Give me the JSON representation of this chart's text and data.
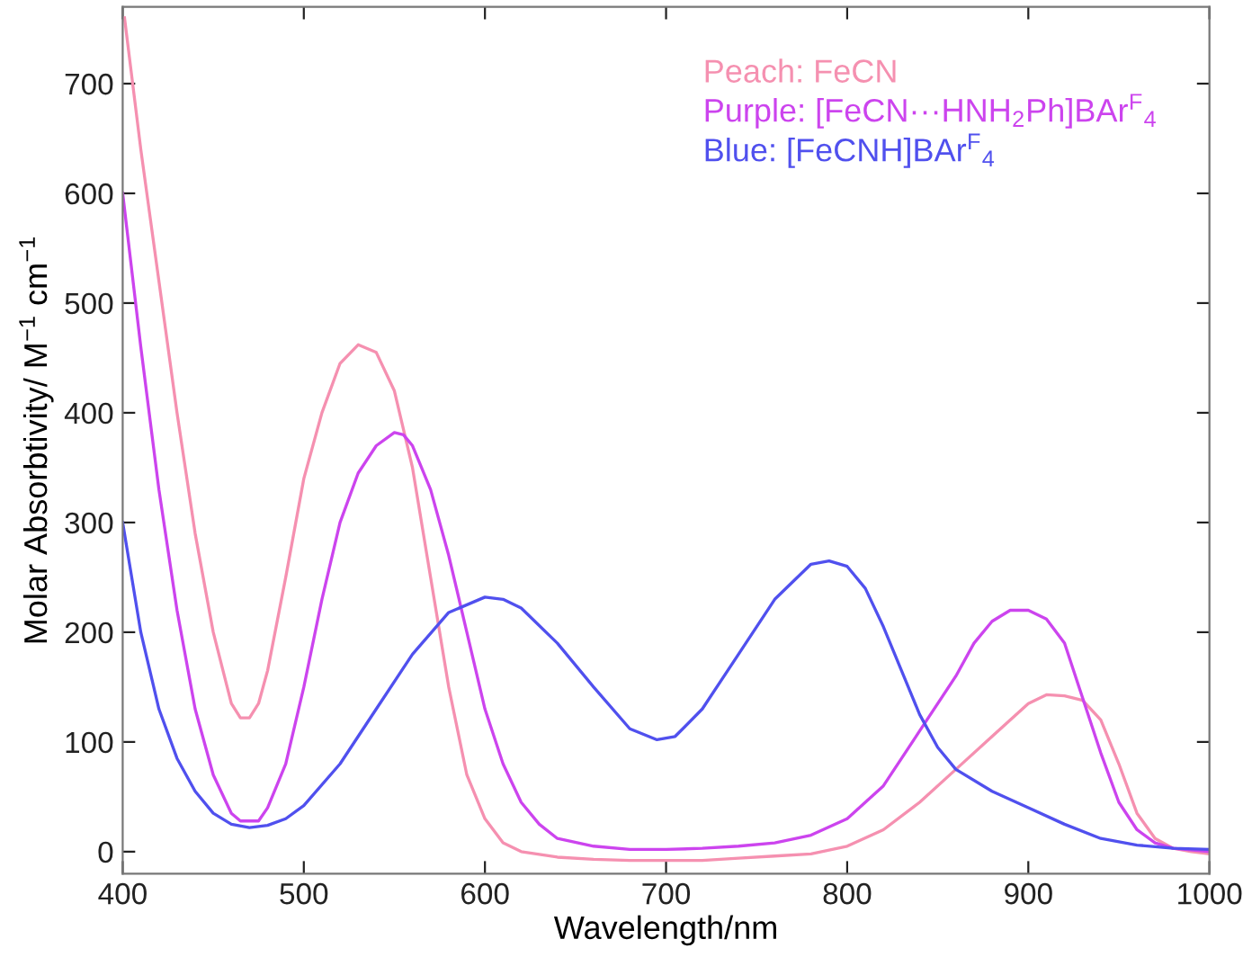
{
  "chart_data": {
    "type": "line",
    "xlabel": "Wavelength/nm",
    "ylabel": "Molar Absorbtivity/ M$^{−1}$ cm$^{−1}$",
    "xlim": [
      400,
      1000
    ],
    "xticks": [
      400,
      500,
      600,
      700,
      800,
      900,
      1000
    ],
    "ylim": [
      -20,
      770
    ],
    "yticks": [
      0,
      100,
      200,
      300,
      400,
      500,
      600,
      700
    ],
    "grid": false,
    "legend": "top right",
    "marker": "none",
    "line_style": "solid",
    "series": [
      {
        "name": "Peach: FeCN",
        "color": "#f590b0",
        "x": [
          401,
          410,
          420,
          430,
          440,
          450,
          460,
          465,
          470,
          475,
          480,
          490,
          500,
          510,
          520,
          530,
          540,
          550,
          560,
          570,
          580,
          590,
          600,
          610,
          620,
          640,
          660,
          680,
          700,
          720,
          740,
          760,
          780,
          800,
          820,
          840,
          860,
          880,
          900,
          910,
          920,
          930,
          940,
          950,
          960,
          970,
          980,
          990,
          1000
        ],
        "values": [
          760,
          640,
          520,
          400,
          290,
          200,
          135,
          122,
          122,
          135,
          165,
          250,
          340,
          400,
          445,
          462,
          455,
          420,
          350,
          250,
          150,
          70,
          30,
          8,
          0,
          -5,
          -7,
          -8,
          -8,
          -8,
          -6,
          -4,
          -2,
          5,
          20,
          45,
          75,
          105,
          135,
          143,
          142,
          138,
          120,
          80,
          35,
          12,
          3,
          0,
          -2
        ]
      },
      {
        "name": "Purple: [FeCN···HNH$_{2}$Ph]BAr$^{F}$$_{4}$",
        "color": "#cc44ee",
        "x": [
          400,
          410,
          420,
          430,
          440,
          450,
          460,
          465,
          475,
          480,
          490,
          500,
          510,
          520,
          530,
          540,
          550,
          555,
          560,
          570,
          580,
          590,
          600,
          610,
          620,
          630,
          640,
          660,
          680,
          700,
          720,
          740,
          760,
          780,
          800,
          820,
          840,
          860,
          870,
          880,
          890,
          900,
          910,
          920,
          930,
          940,
          950,
          960,
          970,
          980,
          1000
        ],
        "values": [
          600,
          460,
          330,
          220,
          130,
          70,
          35,
          28,
          28,
          40,
          80,
          150,
          230,
          300,
          345,
          370,
          382,
          380,
          370,
          330,
          270,
          200,
          130,
          80,
          45,
          25,
          12,
          5,
          2,
          2,
          3,
          5,
          8,
          15,
          30,
          60,
          110,
          160,
          190,
          210,
          220,
          220,
          212,
          190,
          140,
          90,
          45,
          20,
          8,
          3,
          0
        ]
      },
      {
        "name": "Blue: [FeCNH]BAr$^{F}$$_{4}$",
        "color": "#5050ee",
        "x": [
          400,
          410,
          420,
          430,
          440,
          450,
          460,
          470,
          480,
          490,
          500,
          520,
          540,
          560,
          580,
          600,
          610,
          620,
          640,
          660,
          680,
          695,
          705,
          720,
          740,
          760,
          780,
          790,
          800,
          810,
          820,
          830,
          840,
          850,
          860,
          880,
          900,
          920,
          940,
          960,
          980,
          1000
        ],
        "values": [
          300,
          200,
          130,
          85,
          55,
          35,
          25,
          22,
          24,
          30,
          42,
          80,
          130,
          180,
          218,
          232,
          230,
          222,
          190,
          150,
          112,
          102,
          105,
          130,
          180,
          230,
          262,
          265,
          260,
          240,
          205,
          165,
          125,
          95,
          75,
          55,
          40,
          25,
          12,
          6,
          3,
          2
        ]
      }
    ]
  }
}
